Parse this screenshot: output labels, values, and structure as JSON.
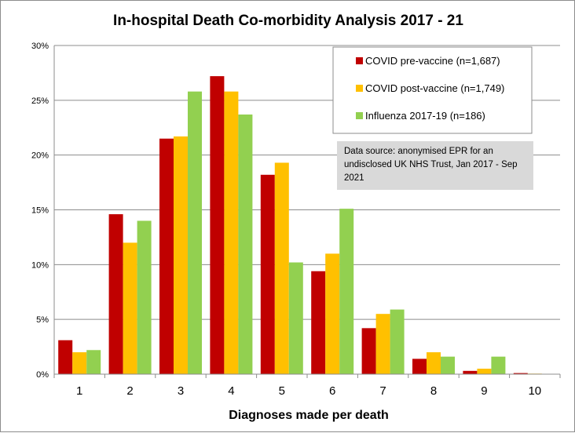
{
  "chart_data": {
    "type": "bar",
    "title": "In-hospital  Death Co-morbidity  Analysis 2017 - 21",
    "xlabel": "Diagnoses made per death",
    "ylabel": "",
    "ylim": [
      0,
      30
    ],
    "yticks": [
      0,
      5,
      10,
      15,
      20,
      25,
      30
    ],
    "ytick_labels": [
      "0%",
      "5%",
      "10%",
      "15%",
      "20%",
      "25%",
      "30%"
    ],
    "categories": [
      "1",
      "2",
      "3",
      "4",
      "5",
      "6",
      "7",
      "8",
      "9",
      "10"
    ],
    "grid": true,
    "legend_position": "top-right",
    "series": [
      {
        "name": "COVID pre-vaccine (n=1,687)",
        "color": "#c00000",
        "values": [
          3.1,
          14.6,
          21.5,
          27.2,
          18.2,
          9.4,
          4.2,
          1.4,
          0.3,
          0.1
        ]
      },
      {
        "name": "COVID post-vaccine (n=1,749)",
        "color": "#ffc000",
        "values": [
          2.0,
          12.0,
          21.7,
          25.8,
          19.3,
          11.0,
          5.5,
          2.0,
          0.5,
          0.05
        ]
      },
      {
        "name": "Influenza 2017-19 (n=186)",
        "color": "#92d050",
        "values": [
          2.2,
          14.0,
          25.8,
          23.7,
          10.2,
          15.1,
          5.9,
          1.6,
          1.6,
          0
        ]
      }
    ],
    "annotation": {
      "lines": [
        "Data source: anonymised EPR for an",
        "undisclosed UK NHS Trust, Jan 2017 - Sep",
        "2021"
      ]
    }
  }
}
